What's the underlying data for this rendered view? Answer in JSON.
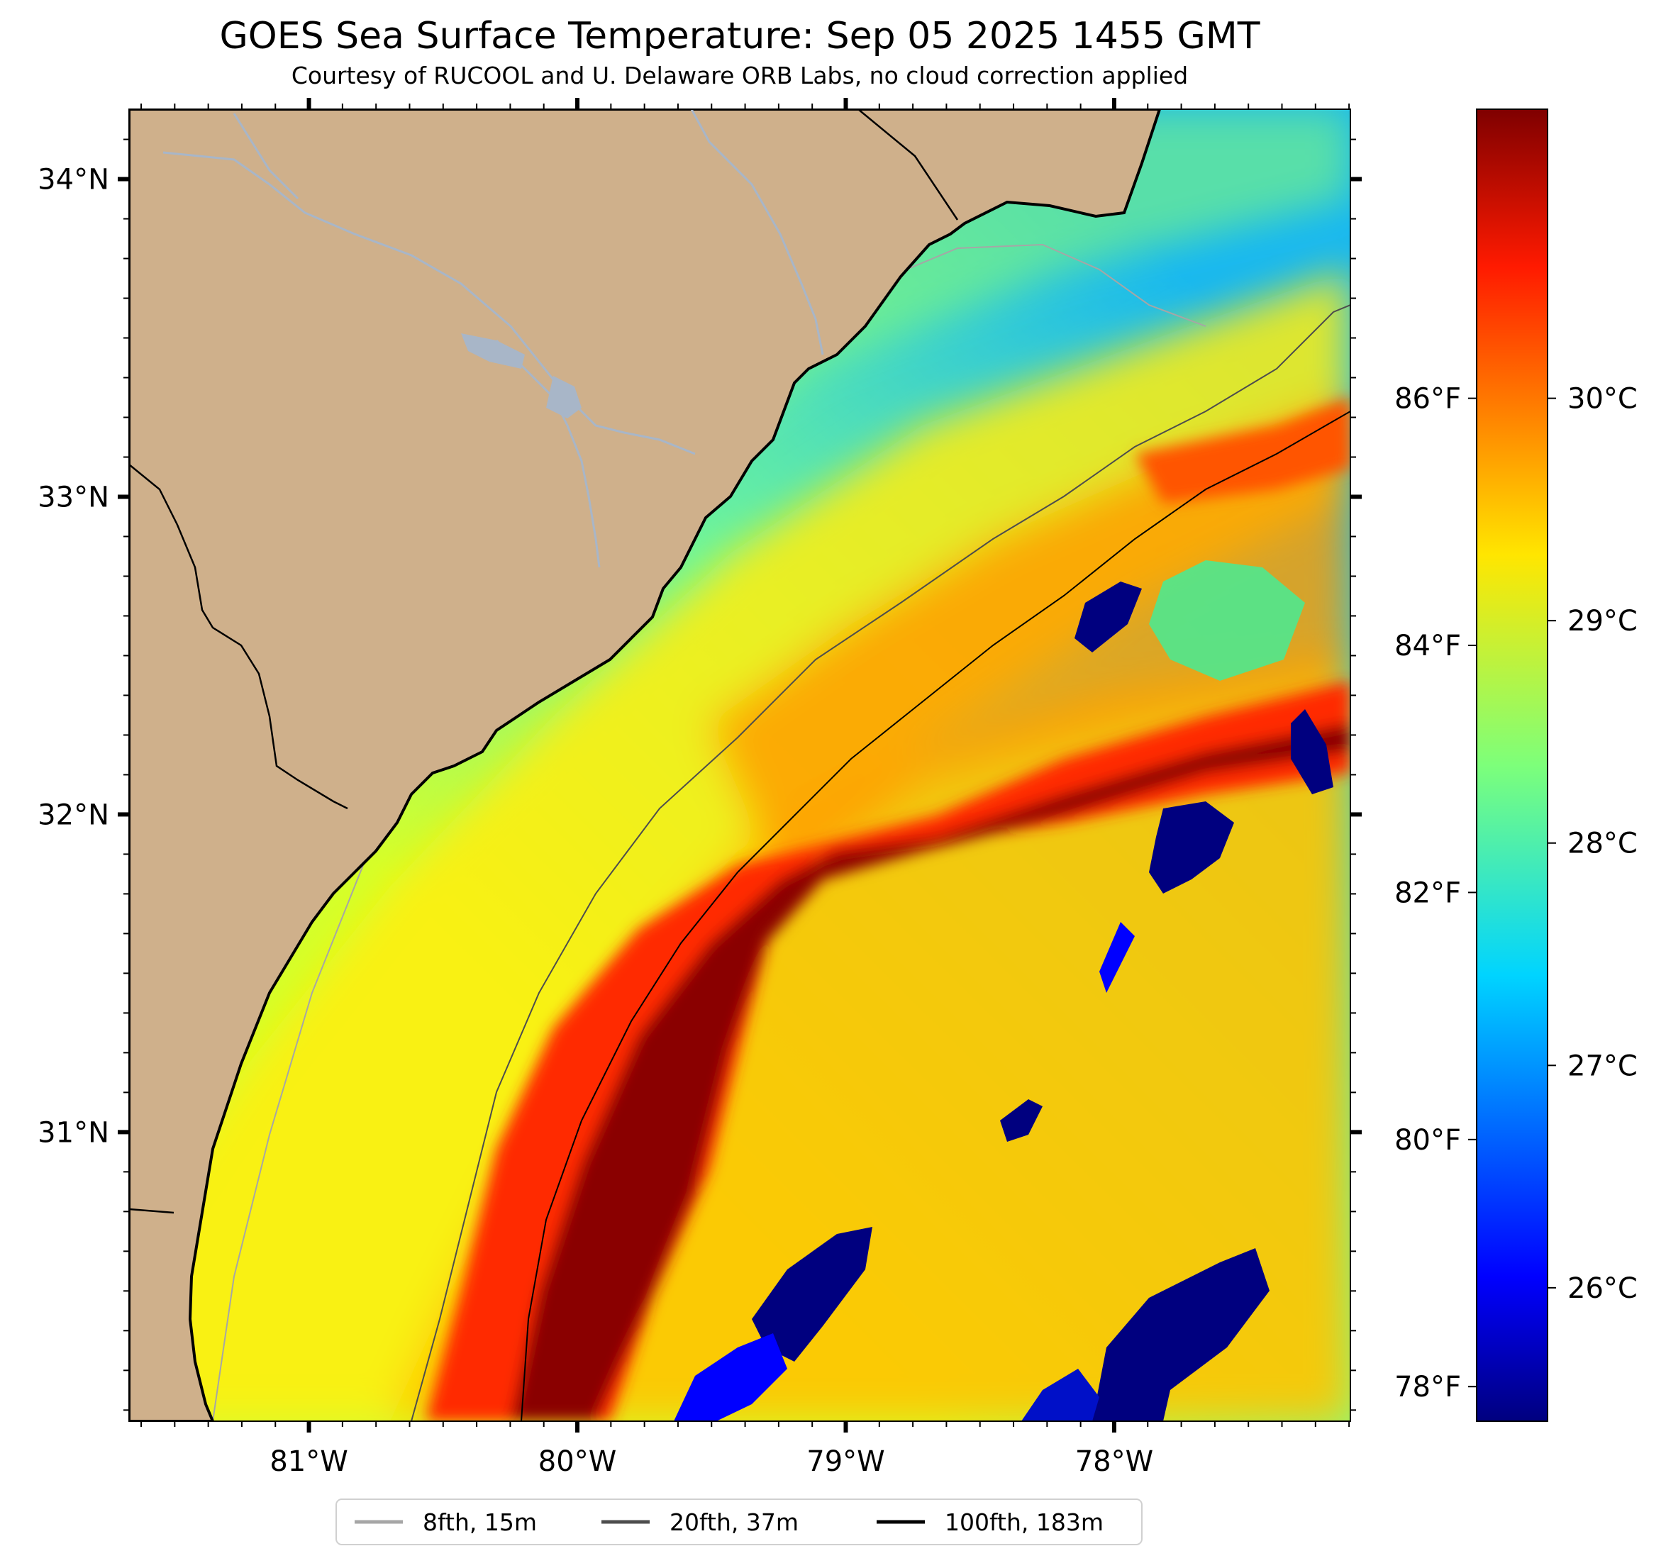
{
  "title": "GOES Sea Surface Temperature: Sep 05 2025 1455 GMT",
  "subtitle": "Courtesy of RUCOOL and U. Delaware ORB Labs, no cloud correction applied",
  "map": {
    "lon_range": [
      -81.67,
      -77.12
    ],
    "lat_range": [
      30.09,
      34.22
    ],
    "longitude_labels": [
      {
        "lon": -81,
        "label": "81°W"
      },
      {
        "lon": -80,
        "label": "80°W"
      },
      {
        "lon": -79,
        "label": "79°W"
      },
      {
        "lon": -78,
        "label": "78°W"
      }
    ],
    "latitude_labels": [
      {
        "lat": 34,
        "label": "34°N"
      },
      {
        "lat": 33,
        "label": "33°N"
      },
      {
        "lat": 32,
        "label": "32°N"
      },
      {
        "lat": 31,
        "label": "31°N"
      }
    ],
    "land_color": "#cfb08b",
    "coast_color": "#000000",
    "river_color": "#a8b6c8",
    "field": "sea surface temperature (jet colormap), warm Gulf Stream band running SW to NE offshore"
  },
  "colorbar": {
    "colormap": "jet",
    "celsius_range": [
      25.4,
      31.3
    ],
    "celsius_labels": [
      {
        "value": 26,
        "label": "26°C"
      },
      {
        "value": 27,
        "label": "27°C"
      },
      {
        "value": 28,
        "label": "28°C"
      },
      {
        "value": 29,
        "label": "29°C"
      },
      {
        "value": 30,
        "label": "30°C"
      }
    ],
    "fahrenheit_labels": [
      {
        "value": 78,
        "label": "78°F"
      },
      {
        "value": 80,
        "label": "80°F"
      },
      {
        "value": 82,
        "label": "82°F"
      },
      {
        "value": 84,
        "label": "84°F"
      },
      {
        "value": 86,
        "label": "86°F"
      }
    ]
  },
  "legend": [
    {
      "label": "8fth, 15m",
      "color": "#a6a6a6"
    },
    {
      "label": "20fth, 37m",
      "color": "#4d4d4d"
    },
    {
      "label": "100fth, 183m",
      "color": "#000000"
    }
  ]
}
